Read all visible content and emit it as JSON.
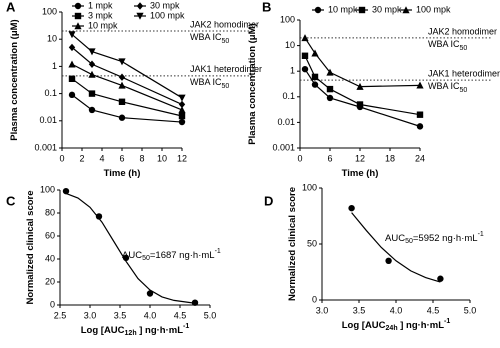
{
  "chart_data": [
    {
      "type": "line",
      "panel": "A",
      "log_y": true,
      "xlabel": [
        {
          "text": "Time (h)"
        }
      ],
      "ylabel": [
        {
          "text": "Plasma concentration (μM)"
        }
      ],
      "xlim": [
        0,
        12
      ],
      "xticks": [
        0,
        2,
        4,
        6,
        8,
        10,
        12
      ],
      "ylim": [
        0.001,
        100
      ],
      "yticks": [
        0.001,
        0.01,
        0.1,
        1,
        10,
        100
      ],
      "series": [
        {
          "name": "1 mpk",
          "marker": "circle",
          "color": "#000000",
          "x": [
            1,
            3,
            6,
            12
          ],
          "values": [
            0.09,
            0.025,
            0.013,
            0.009
          ]
        },
        {
          "name": "3 mpk",
          "marker": "square",
          "color": "#000000",
          "x": [
            1,
            3,
            6,
            12
          ],
          "values": [
            0.35,
            0.1,
            0.05,
            0.015
          ]
        },
        {
          "name": "10 mpk",
          "marker": "triangle",
          "color": "#000000",
          "x": [
            1,
            3,
            6,
            12
          ],
          "values": [
            1.2,
            0.5,
            0.2,
            0.025
          ]
        },
        {
          "name": "30 mpk",
          "marker": "diamond",
          "color": "#000000",
          "x": [
            1,
            3,
            6,
            12
          ],
          "values": [
            5,
            1.2,
            0.4,
            0.04
          ]
        },
        {
          "name": "100 mpk",
          "marker": "triangle-down",
          "color": "#000000",
          "x": [
            1,
            3,
            6,
            12
          ],
          "values": [
            15,
            3.5,
            1.5,
            0.07
          ]
        }
      ],
      "reference_lines": [
        {
          "y": 20,
          "line1": "JAK2 homodimer",
          "line2": [
            {
              "text": "WBA IC"
            },
            {
              "text": "50",
              "sub": true
            }
          ]
        },
        {
          "y": 0.45,
          "line1": "JAK1 heterodimer",
          "line2": [
            {
              "text": "WBA IC"
            },
            {
              "text": "50",
              "sub": true
            }
          ]
        }
      ]
    },
    {
      "type": "line",
      "panel": "B",
      "log_y": true,
      "xlabel": [
        {
          "text": "Time (h)"
        }
      ],
      "ylabel": [
        {
          "text": "Plasma concentration (μM)"
        }
      ],
      "xlim": [
        0,
        24
      ],
      "xticks": [
        0,
        6,
        12,
        18,
        24
      ],
      "ylim": [
        0.001,
        100
      ],
      "yticks": [
        0.001,
        0.01,
        0.1,
        1,
        10,
        100
      ],
      "series": [
        {
          "name": "10 mpk",
          "marker": "circle",
          "color": "#000000",
          "x": [
            1,
            3,
            6,
            12,
            24
          ],
          "values": [
            1.2,
            0.3,
            0.09,
            0.04,
            0.007
          ]
        },
        {
          "name": "30 mpk",
          "marker": "square",
          "color": "#000000",
          "x": [
            1,
            3,
            6,
            12,
            24
          ],
          "values": [
            4,
            0.6,
            0.2,
            0.05,
            0.02
          ]
        },
        {
          "name": "100 mpk",
          "marker": "triangle",
          "color": "#000000",
          "x": [
            1,
            3,
            6,
            12,
            24
          ],
          "values": [
            20,
            5,
            0.9,
            0.25,
            0.28
          ]
        }
      ],
      "reference_lines": [
        {
          "y": 20,
          "line1": "JAK2 homodimer",
          "line2": [
            {
              "text": "WBA IC"
            },
            {
              "text": "50",
              "sub": true
            }
          ]
        },
        {
          "y": 0.45,
          "line1": "JAK1 heterodimer",
          "line2": [
            {
              "text": "WBA IC"
            },
            {
              "text": "50",
              "sub": true
            }
          ]
        }
      ]
    },
    {
      "type": "scatter",
      "panel": "C",
      "log_y": false,
      "xlabel": [
        {
          "text": "Log [AUC"
        },
        {
          "text": "12h",
          "sub": true
        },
        {
          "text": " ] ng·h·mL"
        },
        {
          "text": "-1",
          "sup": true
        }
      ],
      "ylabel": [
        {
          "text": "Normalized clinical score"
        }
      ],
      "xlim": [
        2.5,
        5
      ],
      "xticks": [
        2.5,
        {
          "value": 3,
          "label": "3.0"
        },
        3.5,
        {
          "value": 4,
          "label": "4.0"
        },
        4.5,
        {
          "value": 5,
          "label": "5.0"
        }
      ],
      "ylim": [
        0,
        100
      ],
      "yticks": [
        0,
        20,
        40,
        60,
        80,
        100
      ],
      "series": [
        {
          "marker": "circle",
          "line": false,
          "color": "#000000",
          "x": [
            2.6,
            3.15,
            3.6,
            4.0,
            4.75
          ],
          "values": [
            99,
            77,
            41,
            10,
            2
          ]
        },
        {
          "marker": "none",
          "line": true,
          "color": "#000000",
          "x": [
            2.6,
            2.8,
            3.0,
            3.2,
            3.4,
            3.6,
            3.8,
            4.0,
            4.2,
            4.4,
            4.75
          ],
          "values": [
            97,
            93,
            85,
            72,
            55,
            38,
            23,
            13,
            7,
            4,
            1.5
          ]
        }
      ],
      "annotation": [
        {
          "text": "AUC"
        },
        {
          "text": "50",
          "sub": true
        },
        {
          "text": "=1687 ng·h·mL"
        },
        {
          "text": "-1",
          "sup": true
        }
      ]
    },
    {
      "type": "scatter",
      "panel": "D",
      "log_y": false,
      "xlabel": [
        {
          "text": "Log [AUC"
        },
        {
          "text": "24h",
          "sub": true
        },
        {
          "text": " ] ng·h·mL"
        },
        {
          "text": "-1",
          "sup": true
        }
      ],
      "ylabel": [
        {
          "text": "Normalized clinical score"
        }
      ],
      "xlim": [
        3,
        5
      ],
      "xticks": [
        {
          "value": 3,
          "label": "3.0"
        },
        3.5,
        {
          "value": 4,
          "label": "4.0"
        },
        4.5,
        {
          "value": 5,
          "label": "5.0"
        }
      ],
      "ylim": [
        0,
        100
      ],
      "yticks": [
        0,
        50,
        100
      ],
      "series": [
        {
          "marker": "circle",
          "line": false,
          "color": "#000000",
          "x": [
            3.4,
            3.9,
            4.6
          ],
          "values": [
            82,
            35,
            19
          ]
        },
        {
          "marker": "none",
          "line": true,
          "color": "#000000",
          "x": [
            3.4,
            3.6,
            3.8,
            4.0,
            4.2,
            4.4,
            4.6
          ],
          "values": [
            78,
            62,
            47,
            35,
            26,
            20,
            16
          ]
        }
      ],
      "annotation": [
        {
          "text": "AUC"
        },
        {
          "text": "50",
          "sub": true
        },
        {
          "text": "=5952 ng·h·mL"
        },
        {
          "text": "-1",
          "sup": true
        }
      ]
    }
  ]
}
